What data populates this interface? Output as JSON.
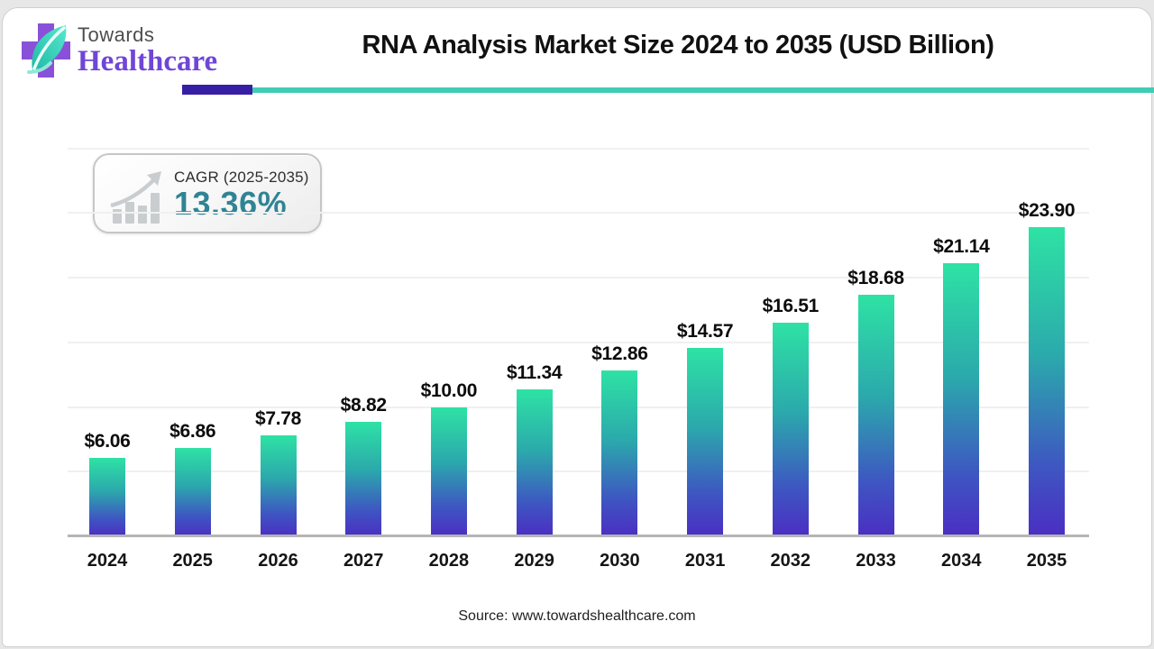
{
  "brand": {
    "logo_icon": "cross-leaf-icon",
    "name_line1": "Towards",
    "name_line2": "Healthcare",
    "cross_color": "#8951d8",
    "leaf_color_top": "#57e8cf",
    "leaf_color_bottom": "#1fb9a5"
  },
  "header": {
    "title": "RNA Analysis Market Size 2024 to 2035 (USD Billion)"
  },
  "divider": {
    "purple_color": "#371fa5",
    "teal_color": "#3fcdb4"
  },
  "cagr_badge": {
    "icon": "growth-bars-arrow-icon",
    "icon_color": "#c9cdd0",
    "label": "CAGR (2025-2035)",
    "value": "13.36%",
    "value_color": "#2f8494"
  },
  "chart_data": {
    "type": "bar",
    "title": "RNA Analysis Market Size 2024 to 2035 (USD Billion)",
    "xlabel": "",
    "ylabel": "",
    "unit": "USD Billion",
    "categories": [
      "2024",
      "2025",
      "2026",
      "2027",
      "2028",
      "2029",
      "2030",
      "2031",
      "2032",
      "2033",
      "2034",
      "2035"
    ],
    "values": [
      6.06,
      6.86,
      7.78,
      8.82,
      10.0,
      11.34,
      12.86,
      14.57,
      16.51,
      18.68,
      21.14,
      23.9
    ],
    "value_labels": [
      "$6.06",
      "$6.86",
      "$7.78",
      "$8.82",
      "$10.00",
      "$11.34",
      "$12.86",
      "$14.57",
      "$16.51",
      "$18.68",
      "$21.14",
      "$23.90"
    ],
    "ylim": [
      0,
      30
    ],
    "gridline_values": [
      5,
      10,
      15,
      20,
      25,
      30
    ],
    "grid": "horizontal-faint",
    "legend": "none",
    "bar_gradient": [
      "#2ee2a4",
      "#2ba9ac",
      "#3e55c2",
      "#4b2ec3"
    ],
    "axis_color": "#b5b5b5"
  },
  "footer": {
    "source": "Source: www.towardshealthcare.com"
  }
}
